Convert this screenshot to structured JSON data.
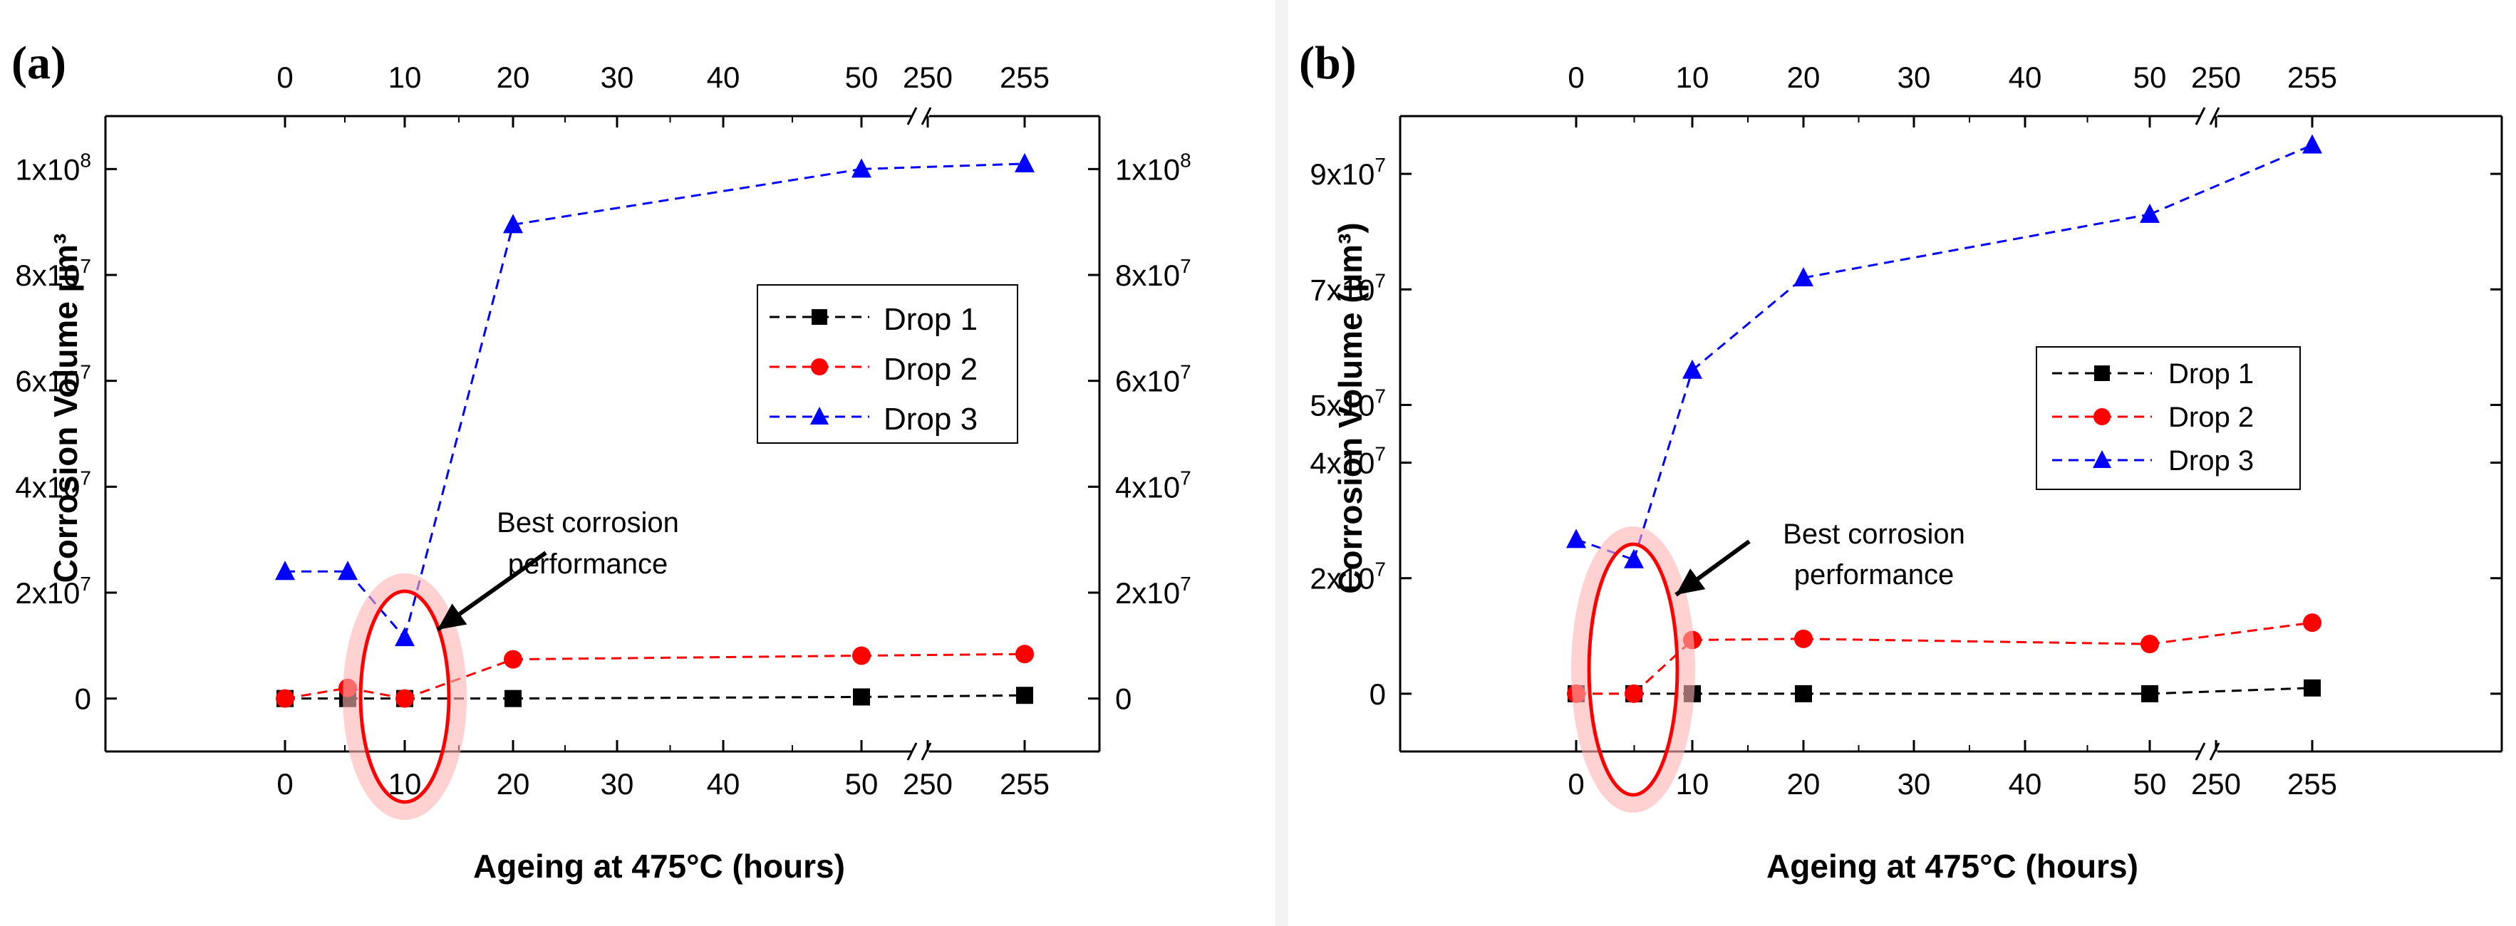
{
  "chart_data": [
    {
      "type": "line",
      "panel_label": "(a)",
      "xlabel": "Ageing at 475°C (hours)",
      "ylabel": "Corrosion Volume µm³",
      "x": [
        0,
        5,
        10,
        20,
        50,
        255
      ],
      "x_ticks": [
        0,
        10,
        20,
        30,
        40,
        50,
        250,
        255
      ],
      "x_break": [
        50,
        250
      ],
      "y_ticks": [
        {
          "value": 0,
          "mant": "0",
          "exp": ""
        },
        {
          "value": 20000000,
          "mant": "2x10",
          "exp": "7"
        },
        {
          "value": 40000000,
          "mant": "4x10",
          "exp": "7"
        },
        {
          "value": 60000000,
          "mant": "6x10",
          "exp": "7"
        },
        {
          "value": 80000000,
          "mant": "8x10",
          "exp": "7"
        },
        {
          "value": 100000000,
          "mant": "1x10",
          "exp": "8"
        }
      ],
      "ylim": [
        -10000000,
        110000000
      ],
      "series": [
        {
          "name": "Drop 1",
          "color": "#000000",
          "marker": "square",
          "values": [
            0,
            0,
            0,
            0,
            300000,
            600000
          ]
        },
        {
          "name": "Drop 2",
          "color": "#ff0000",
          "marker": "circle",
          "values": [
            0,
            2000000,
            0,
            7400000,
            8100000,
            8400000
          ]
        },
        {
          "name": "Drop 3",
          "color": "#0000ff",
          "marker": "triangle",
          "values": [
            24000000,
            24000000,
            11500000,
            89500000,
            100000000,
            101000000
          ]
        }
      ],
      "annotation": {
        "line1": "Best corrosion",
        "line2": "performance",
        "x": 10
      }
    },
    {
      "type": "line",
      "panel_label": "(b)",
      "xlabel": "Ageing at 475°C (hours)",
      "ylabel": "Corrosion Volume (µm³)",
      "x": [
        0,
        5,
        10,
        20,
        50,
        255
      ],
      "x_ticks": [
        0,
        10,
        20,
        30,
        40,
        50,
        250,
        255
      ],
      "x_break": [
        50,
        250
      ],
      "y_ticks": [
        {
          "value": 0,
          "mant": "0",
          "exp": ""
        },
        {
          "value": 20000000,
          "mant": "2x10",
          "exp": "7"
        },
        {
          "value": 40000000,
          "mant": "4x10",
          "exp": "7"
        },
        {
          "value": 50000000,
          "mant": "5x10",
          "exp": "7"
        },
        {
          "value": 70000000,
          "mant": "7x10",
          "exp": "7"
        },
        {
          "value": 90000000,
          "mant": "9x10",
          "exp": "7"
        }
      ],
      "ylim": [
        -10000000,
        100000000
      ],
      "series": [
        {
          "name": "Drop 1",
          "color": "#000000",
          "marker": "square",
          "values": [
            0,
            0,
            0,
            0,
            0,
            1000000
          ]
        },
        {
          "name": "Drop 2",
          "color": "#ff0000",
          "marker": "circle",
          "values": [
            0,
            0,
            9300000,
            9500000,
            8600000,
            12300000
          ]
        },
        {
          "name": "Drop 3",
          "color": "#0000ff",
          "marker": "triangle",
          "values": [
            26700000,
            23200000,
            56000000,
            72000000,
            83000000,
            95000000
          ]
        }
      ],
      "annotation": {
        "line1": "Best corrosion",
        "line2": "performance",
        "x": 5
      }
    }
  ]
}
